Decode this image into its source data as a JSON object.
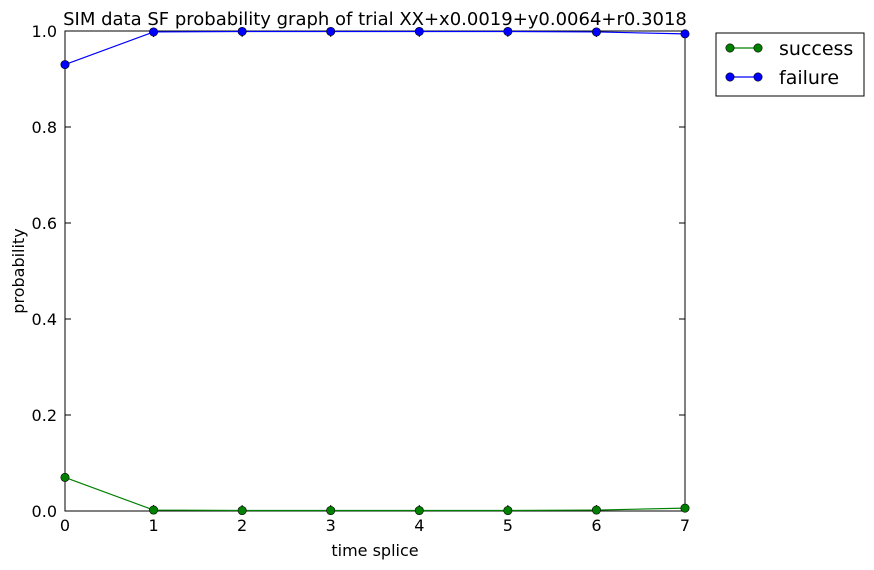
{
  "chart_data": {
    "type": "line",
    "title": "SIM data SF probability graph of trial XX+x0.0019+y0.0064+r0.3018",
    "xlabel": "time splice",
    "ylabel": "probability",
    "xlim": [
      0,
      7
    ],
    "ylim": [
      0,
      1
    ],
    "x": [
      0,
      1,
      2,
      3,
      4,
      5,
      6,
      7
    ],
    "x_ticks": [
      "0",
      "1",
      "2",
      "3",
      "4",
      "5",
      "6",
      "7"
    ],
    "y_ticks": [
      "0.0",
      "0.2",
      "0.4",
      "0.6",
      "0.8",
      "1.0"
    ],
    "grid": false,
    "legend_position": "outside-top-right",
    "series": [
      {
        "name": "success",
        "color": "#008000",
        "marker": "circle",
        "values": [
          0.07,
          0.002,
          0.001,
          0.001,
          0.001,
          0.001,
          0.002,
          0.006
        ]
      },
      {
        "name": "failure",
        "color": "#0000ff",
        "marker": "circle",
        "values": [
          0.93,
          0.998,
          0.999,
          0.999,
          0.999,
          0.999,
          0.998,
          0.994
        ]
      }
    ]
  }
}
